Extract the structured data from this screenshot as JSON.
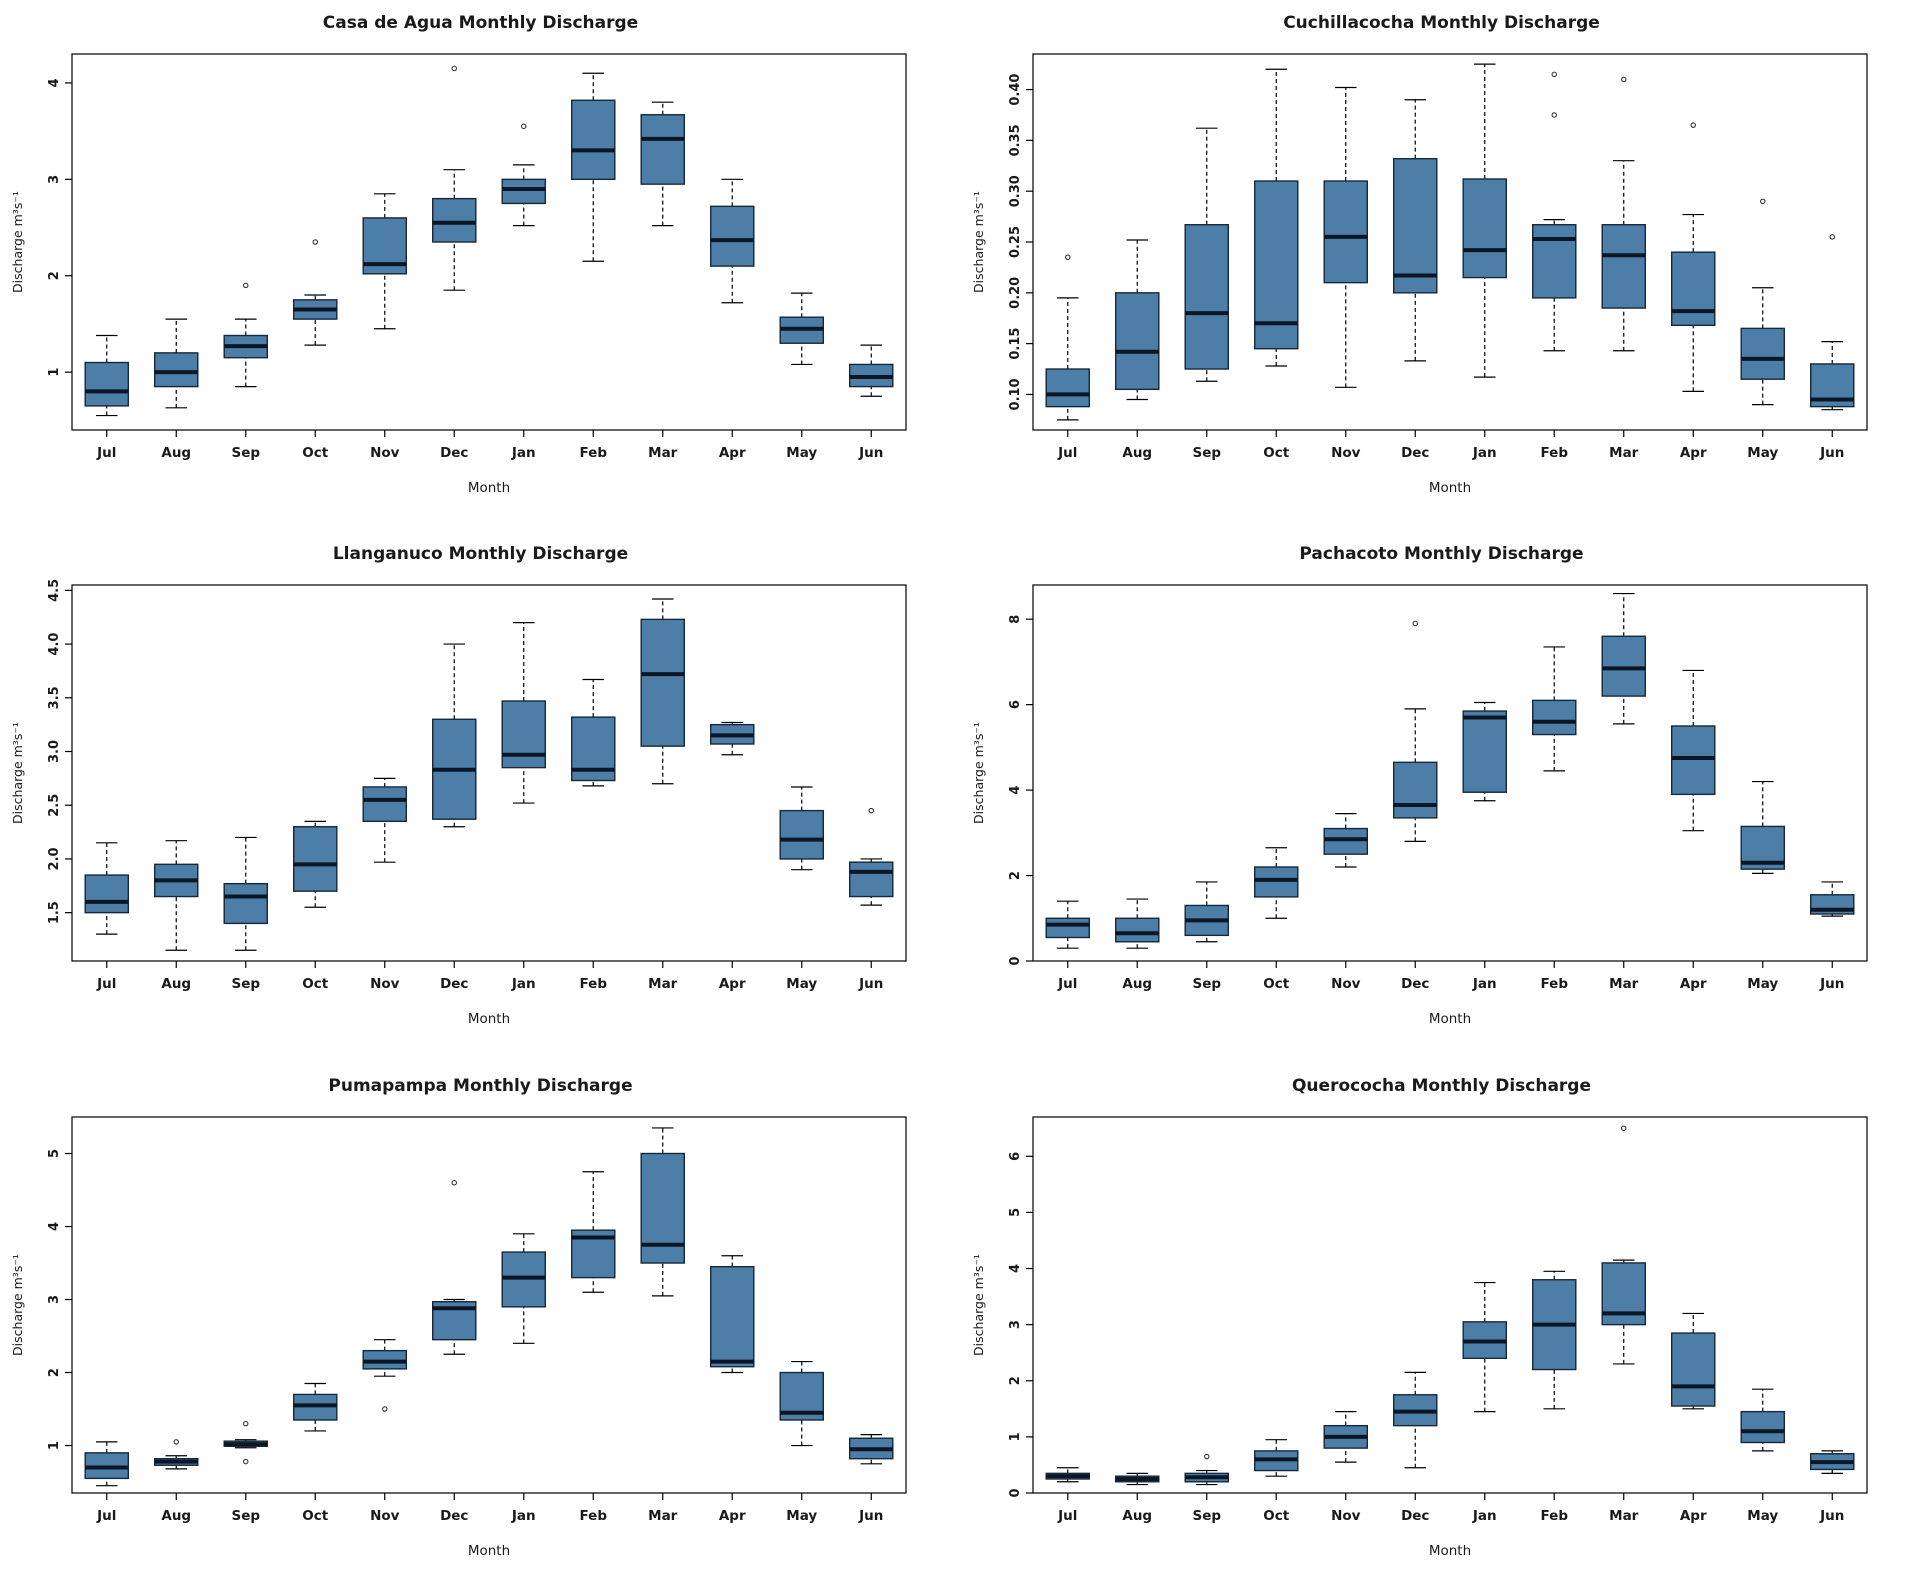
{
  "page": {
    "background": "#ffffff"
  },
  "colors": {
    "box_fill": "#4c7ea8",
    "box_stroke": "#16283a",
    "median": "#0b1724",
    "axis": "#000000",
    "text": "#1a1a1a"
  },
  "chart_data": [
    {
      "type": "boxplot",
      "title": "Casa de Agua Monthly Discharge",
      "xlabel": "Month",
      "ylabel": "Discharge m³s⁻¹",
      "categories": [
        "Jul",
        "Aug",
        "Sep",
        "Oct",
        "Nov",
        "Dec",
        "Jan",
        "Feb",
        "Mar",
        "Apr",
        "May",
        "Jun"
      ],
      "ylim": [
        0.4,
        4.3
      ],
      "ytick_values": [
        1,
        2,
        3,
        4
      ],
      "ytick_labels": [
        "1",
        "2",
        "3",
        "4"
      ],
      "boxes": [
        {
          "low": 0.55,
          "q1": 0.65,
          "med": 0.8,
          "q3": 1.1,
          "high": 1.38,
          "out": []
        },
        {
          "low": 0.63,
          "q1": 0.85,
          "med": 1.0,
          "q3": 1.2,
          "high": 1.55,
          "out": []
        },
        {
          "low": 0.85,
          "q1": 1.15,
          "med": 1.27,
          "q3": 1.38,
          "high": 1.55,
          "out": [
            1.9
          ]
        },
        {
          "low": 1.28,
          "q1": 1.55,
          "med": 1.65,
          "q3": 1.75,
          "high": 1.8,
          "out": [
            2.35
          ]
        },
        {
          "low": 1.45,
          "q1": 2.02,
          "med": 2.12,
          "q3": 2.6,
          "high": 2.85,
          "out": []
        },
        {
          "low": 1.85,
          "q1": 2.35,
          "med": 2.55,
          "q3": 2.8,
          "high": 3.1,
          "out": [
            4.15
          ]
        },
        {
          "low": 2.52,
          "q1": 2.75,
          "med": 2.9,
          "q3": 3.0,
          "high": 3.15,
          "out": [
            3.55
          ]
        },
        {
          "low": 2.15,
          "q1": 3.0,
          "med": 3.3,
          "q3": 3.82,
          "high": 4.1,
          "out": []
        },
        {
          "low": 2.52,
          "q1": 2.95,
          "med": 3.42,
          "q3": 3.67,
          "high": 3.8,
          "out": []
        },
        {
          "low": 1.72,
          "q1": 2.1,
          "med": 2.37,
          "q3": 2.72,
          "high": 3.0,
          "out": []
        },
        {
          "low": 1.08,
          "q1": 1.3,
          "med": 1.45,
          "q3": 1.57,
          "high": 1.82,
          "out": []
        },
        {
          "low": 0.75,
          "q1": 0.85,
          "med": 0.95,
          "q3": 1.08,
          "high": 1.28,
          "out": []
        }
      ]
    },
    {
      "type": "boxplot",
      "title": "Cuchillacocha Monthly Discharge",
      "xlabel": "Month",
      "ylabel": "Discharge m³s⁻¹",
      "categories": [
        "Jul",
        "Aug",
        "Sep",
        "Oct",
        "Nov",
        "Dec",
        "Jan",
        "Feb",
        "Mar",
        "Apr",
        "May",
        "Jun"
      ],
      "ylim": [
        0.065,
        0.435
      ],
      "ytick_values": [
        0.1,
        0.15,
        0.2,
        0.25,
        0.3,
        0.35,
        0.4
      ],
      "ytick_labels": [
        "0.10",
        "0.15",
        "0.20",
        "0.25",
        "0.30",
        "0.35",
        "0.40"
      ],
      "boxes": [
        {
          "low": 0.075,
          "q1": 0.088,
          "med": 0.1,
          "q3": 0.125,
          "high": 0.195,
          "out": [
            0.235
          ]
        },
        {
          "low": 0.095,
          "q1": 0.105,
          "med": 0.142,
          "q3": 0.2,
          "high": 0.252,
          "out": []
        },
        {
          "low": 0.113,
          "q1": 0.125,
          "med": 0.18,
          "q3": 0.267,
          "high": 0.362,
          "out": []
        },
        {
          "low": 0.128,
          "q1": 0.145,
          "med": 0.17,
          "q3": 0.31,
          "high": 0.42,
          "out": []
        },
        {
          "low": 0.107,
          "q1": 0.21,
          "med": 0.255,
          "q3": 0.31,
          "high": 0.402,
          "out": []
        },
        {
          "low": 0.133,
          "q1": 0.2,
          "med": 0.217,
          "q3": 0.332,
          "high": 0.39,
          "out": []
        },
        {
          "low": 0.117,
          "q1": 0.215,
          "med": 0.242,
          "q3": 0.312,
          "high": 0.425,
          "out": []
        },
        {
          "low": 0.143,
          "q1": 0.195,
          "med": 0.253,
          "q3": 0.267,
          "high": 0.272,
          "out": [
            0.375,
            0.415
          ]
        },
        {
          "low": 0.143,
          "q1": 0.185,
          "med": 0.237,
          "q3": 0.267,
          "high": 0.33,
          "out": [
            0.41
          ]
        },
        {
          "low": 0.103,
          "q1": 0.168,
          "med": 0.182,
          "q3": 0.24,
          "high": 0.277,
          "out": [
            0.365
          ]
        },
        {
          "low": 0.09,
          "q1": 0.115,
          "med": 0.135,
          "q3": 0.165,
          "high": 0.205,
          "out": [
            0.29
          ]
        },
        {
          "low": 0.085,
          "q1": 0.088,
          "med": 0.095,
          "q3": 0.13,
          "high": 0.152,
          "out": [
            0.255
          ]
        }
      ]
    },
    {
      "type": "boxplot",
      "title": "Llanganuco Monthly Discharge",
      "xlabel": "Month",
      "ylabel": "Discharge m³s⁻¹",
      "categories": [
        "Jul",
        "Aug",
        "Sep",
        "Oct",
        "Nov",
        "Dec",
        "Jan",
        "Feb",
        "Mar",
        "Apr",
        "May",
        "Jun"
      ],
      "ylim": [
        1.05,
        4.55
      ],
      "ytick_values": [
        1.5,
        2.0,
        2.5,
        3.0,
        3.5,
        4.0,
        4.5
      ],
      "ytick_labels": [
        "1.5",
        "2.0",
        "2.5",
        "3.0",
        "3.5",
        "4.0",
        "4.5"
      ],
      "boxes": [
        {
          "low": 1.3,
          "q1": 1.5,
          "med": 1.6,
          "q3": 1.85,
          "high": 2.15,
          "out": []
        },
        {
          "low": 1.15,
          "q1": 1.65,
          "med": 1.8,
          "q3": 1.95,
          "high": 2.17,
          "out": []
        },
        {
          "low": 1.15,
          "q1": 1.4,
          "med": 1.65,
          "q3": 1.77,
          "high": 2.2,
          "out": []
        },
        {
          "low": 1.55,
          "q1": 1.7,
          "med": 1.95,
          "q3": 2.3,
          "high": 2.35,
          "out": []
        },
        {
          "low": 1.97,
          "q1": 2.35,
          "med": 2.55,
          "q3": 2.67,
          "high": 2.75,
          "out": []
        },
        {
          "low": 2.3,
          "q1": 2.37,
          "med": 2.83,
          "q3": 3.3,
          "high": 4.0,
          "out": []
        },
        {
          "low": 2.52,
          "q1": 2.85,
          "med": 2.97,
          "q3": 3.47,
          "high": 4.2,
          "out": []
        },
        {
          "low": 2.68,
          "q1": 2.73,
          "med": 2.83,
          "q3": 3.32,
          "high": 3.67,
          "out": []
        },
        {
          "low": 2.7,
          "q1": 3.05,
          "med": 3.72,
          "q3": 4.23,
          "high": 4.42,
          "out": []
        },
        {
          "low": 2.97,
          "q1": 3.07,
          "med": 3.15,
          "q3": 3.25,
          "high": 3.27,
          "out": []
        },
        {
          "low": 1.9,
          "q1": 2.0,
          "med": 2.18,
          "q3": 2.45,
          "high": 2.67,
          "out": []
        },
        {
          "low": 1.57,
          "q1": 1.65,
          "med": 1.88,
          "q3": 1.97,
          "high": 2.0,
          "out": [
            2.45
          ]
        }
      ]
    },
    {
      "type": "boxplot",
      "title": "Pachacoto Monthly Discharge",
      "xlabel": "Month",
      "ylabel": "Discharge m³s⁻¹",
      "categories": [
        "Jul",
        "Aug",
        "Sep",
        "Oct",
        "Nov",
        "Dec",
        "Jan",
        "Feb",
        "Mar",
        "Apr",
        "May",
        "Jun"
      ],
      "ylim": [
        0,
        8.8
      ],
      "ytick_values": [
        0,
        2,
        4,
        6,
        8
      ],
      "ytick_labels": [
        "0",
        "2",
        "4",
        "6",
        "8"
      ],
      "boxes": [
        {
          "low": 0.3,
          "q1": 0.55,
          "med": 0.85,
          "q3": 1.0,
          "high": 1.4,
          "out": []
        },
        {
          "low": 0.3,
          "q1": 0.45,
          "med": 0.65,
          "q3": 1.0,
          "high": 1.45,
          "out": []
        },
        {
          "low": 0.45,
          "q1": 0.6,
          "med": 0.95,
          "q3": 1.3,
          "high": 1.85,
          "out": []
        },
        {
          "low": 1.0,
          "q1": 1.5,
          "med": 1.9,
          "q3": 2.2,
          "high": 2.65,
          "out": []
        },
        {
          "low": 2.2,
          "q1": 2.5,
          "med": 2.85,
          "q3": 3.1,
          "high": 3.45,
          "out": []
        },
        {
          "low": 2.8,
          "q1": 3.35,
          "med": 3.65,
          "q3": 4.65,
          "high": 5.9,
          "out": [
            7.9
          ]
        },
        {
          "low": 3.75,
          "q1": 3.95,
          "med": 5.7,
          "q3": 5.85,
          "high": 6.05,
          "out": []
        },
        {
          "low": 4.45,
          "q1": 5.3,
          "med": 5.6,
          "q3": 6.1,
          "high": 7.35,
          "out": []
        },
        {
          "low": 5.55,
          "q1": 6.2,
          "med": 6.85,
          "q3": 7.6,
          "high": 8.6,
          "out": []
        },
        {
          "low": 3.05,
          "q1": 3.9,
          "med": 4.75,
          "q3": 5.5,
          "high": 6.8,
          "out": []
        },
        {
          "low": 2.05,
          "q1": 2.15,
          "med": 2.3,
          "q3": 3.15,
          "high": 4.2,
          "out": []
        },
        {
          "low": 1.05,
          "q1": 1.1,
          "med": 1.2,
          "q3": 1.55,
          "high": 1.85,
          "out": []
        }
      ]
    },
    {
      "type": "boxplot",
      "title": "Pumapampa Monthly Discharge",
      "xlabel": "Month",
      "ylabel": "Discharge m³s⁻¹",
      "categories": [
        "Jul",
        "Aug",
        "Sep",
        "Oct",
        "Nov",
        "Dec",
        "Jan",
        "Feb",
        "Mar",
        "Apr",
        "May",
        "Jun"
      ],
      "ylim": [
        0.35,
        5.5
      ],
      "ytick_values": [
        1,
        2,
        3,
        4,
        5
      ],
      "ytick_labels": [
        "1",
        "2",
        "3",
        "4",
        "5"
      ],
      "boxes": [
        {
          "low": 0.45,
          "q1": 0.55,
          "med": 0.7,
          "q3": 0.9,
          "high": 1.05,
          "out": []
        },
        {
          "low": 0.68,
          "q1": 0.73,
          "med": 0.78,
          "q3": 0.82,
          "high": 0.86,
          "out": [
            1.05
          ]
        },
        {
          "low": 0.97,
          "q1": 0.99,
          "med": 1.02,
          "q3": 1.06,
          "high": 1.08,
          "out": [
            0.78,
            1.3
          ]
        },
        {
          "low": 1.2,
          "q1": 1.35,
          "med": 1.55,
          "q3": 1.7,
          "high": 1.85,
          "out": []
        },
        {
          "low": 1.95,
          "q1": 2.05,
          "med": 2.15,
          "q3": 2.3,
          "high": 2.45,
          "out": [
            1.5
          ]
        },
        {
          "low": 2.25,
          "q1": 2.45,
          "med": 2.88,
          "q3": 2.97,
          "high": 3.0,
          "out": [
            4.6
          ]
        },
        {
          "low": 2.4,
          "q1": 2.9,
          "med": 3.3,
          "q3": 3.65,
          "high": 3.9,
          "out": []
        },
        {
          "low": 3.1,
          "q1": 3.3,
          "med": 3.85,
          "q3": 3.95,
          "high": 4.75,
          "out": []
        },
        {
          "low": 3.05,
          "q1": 3.5,
          "med": 3.75,
          "q3": 5.0,
          "high": 5.35,
          "out": []
        },
        {
          "low": 2.0,
          "q1": 2.08,
          "med": 2.15,
          "q3": 3.45,
          "high": 3.6,
          "out": []
        },
        {
          "low": 1.0,
          "q1": 1.35,
          "med": 1.45,
          "q3": 2.0,
          "high": 2.15,
          "out": []
        },
        {
          "low": 0.75,
          "q1": 0.82,
          "med": 0.95,
          "q3": 1.1,
          "high": 1.15,
          "out": []
        }
      ]
    },
    {
      "type": "boxplot",
      "title": "Querococha Monthly Discharge",
      "xlabel": "Month",
      "ylabel": "Discharge m³s⁻¹",
      "categories": [
        "Jul",
        "Aug",
        "Sep",
        "Oct",
        "Nov",
        "Dec",
        "Jan",
        "Feb",
        "Mar",
        "Apr",
        "May",
        "Jun"
      ],
      "ylim": [
        0,
        6.7
      ],
      "ytick_values": [
        0,
        1,
        2,
        3,
        4,
        5,
        6
      ],
      "ytick_labels": [
        "0",
        "1",
        "2",
        "3",
        "4",
        "5",
        "6"
      ],
      "boxes": [
        {
          "low": 0.2,
          "q1": 0.25,
          "med": 0.3,
          "q3": 0.35,
          "high": 0.45,
          "out": []
        },
        {
          "low": 0.15,
          "q1": 0.2,
          "med": 0.25,
          "q3": 0.3,
          "high": 0.35,
          "out": []
        },
        {
          "low": 0.15,
          "q1": 0.2,
          "med": 0.28,
          "q3": 0.35,
          "high": 0.4,
          "out": [
            0.65
          ]
        },
        {
          "low": 0.3,
          "q1": 0.4,
          "med": 0.6,
          "q3": 0.75,
          "high": 0.95,
          "out": []
        },
        {
          "low": 0.55,
          "q1": 0.8,
          "med": 1.0,
          "q3": 1.2,
          "high": 1.45,
          "out": []
        },
        {
          "low": 0.45,
          "q1": 1.2,
          "med": 1.45,
          "q3": 1.75,
          "high": 2.15,
          "out": []
        },
        {
          "low": 1.45,
          "q1": 2.4,
          "med": 2.7,
          "q3": 3.05,
          "high": 3.75,
          "out": []
        },
        {
          "low": 1.5,
          "q1": 2.2,
          "med": 3.0,
          "q3": 3.8,
          "high": 3.95,
          "out": []
        },
        {
          "low": 2.3,
          "q1": 3.0,
          "med": 3.2,
          "q3": 4.1,
          "high": 4.15,
          "out": [
            6.5
          ]
        },
        {
          "low": 1.5,
          "q1": 1.55,
          "med": 1.9,
          "q3": 2.85,
          "high": 3.2,
          "out": []
        },
        {
          "low": 0.75,
          "q1": 0.9,
          "med": 1.1,
          "q3": 1.45,
          "high": 1.85,
          "out": []
        },
        {
          "low": 0.35,
          "q1": 0.42,
          "med": 0.55,
          "q3": 0.7,
          "high": 0.75,
          "out": []
        }
      ]
    }
  ]
}
